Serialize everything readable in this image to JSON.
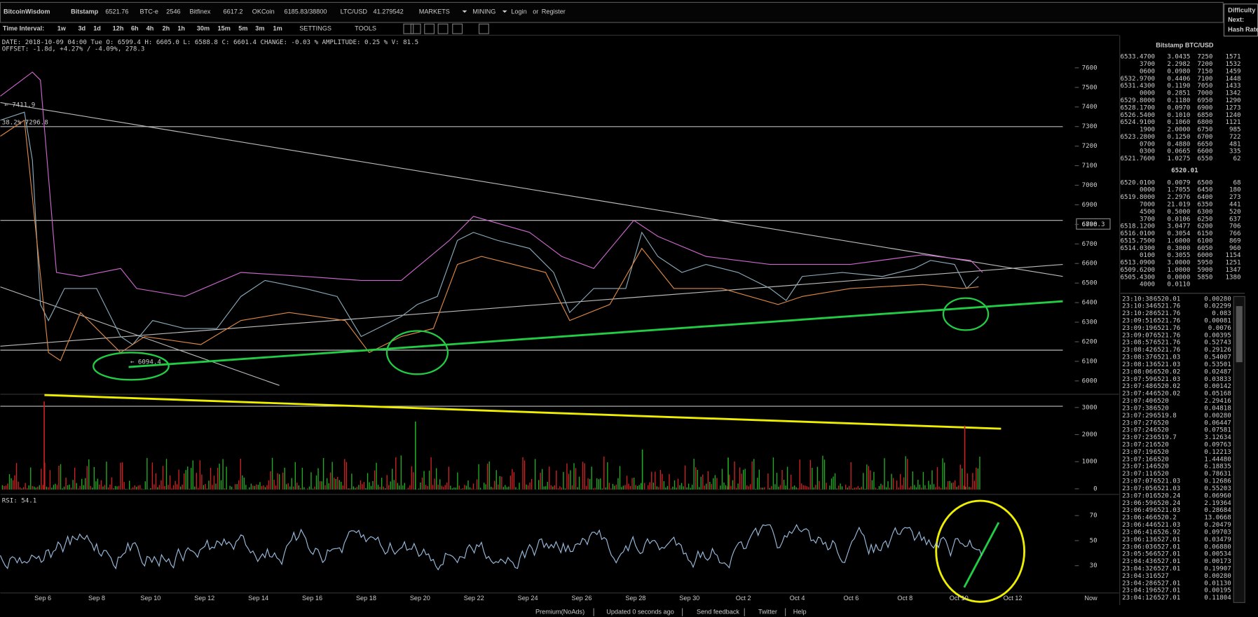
{
  "header": {
    "brand": "BitcoinWisdom",
    "tickers": [
      {
        "name": "Bitstamp",
        "price": "6521.76"
      },
      {
        "name": "BTC-e",
        "price": "2546"
      },
      {
        "name": "Bitfinex",
        "price": "6617.2"
      },
      {
        "name": "OKCoin",
        "price": "6185.83/38800"
      },
      {
        "name": "LTC/USD",
        "price": "41.279542"
      }
    ],
    "menus": [
      "MARKETS",
      "MINING"
    ],
    "login": "Login",
    "or": "or",
    "register": "Register",
    "side": [
      "Difficulty",
      "Next:",
      "Hash Rate"
    ]
  },
  "toolbar": {
    "label": "Time Interval:",
    "intervals": [
      "1w",
      "3d",
      "1d",
      "12h",
      "6h",
      "4h",
      "2h",
      "1h",
      "30m",
      "15m",
      "5m",
      "3m",
      "1m"
    ],
    "menus": [
      "SETTINGS",
      "TOOLS"
    ]
  },
  "info": [
    "DATE: 2018-10-09 04:00 Tue   O: 6599.4   H: 6605.0   L: 6588.8   C: 6601.4   CHANGE: -0.03 %   AMPLITUDE: 0.25 %   V: 81.5",
    "OFFSET: -1.8d, +4.27% / -4.09%, 278.3"
  ],
  "chart": {
    "price_ylim": [
      5940,
      7660
    ],
    "price_ticks": [
      6000,
      6100,
      6200,
      6300,
      6400,
      6500,
      6600,
      6700,
      6800,
      6900,
      7000,
      7100,
      7200,
      7300,
      7400,
      7500,
      7600
    ],
    "volume_ylim": [
      0,
      3400
    ],
    "volume_ticks": [
      0,
      1000,
      2000,
      3000
    ],
    "rsi_ylim": [
      5,
      85
    ],
    "rsi_ticks": [
      30,
      50,
      70
    ],
    "rsi_label": "RSI: 54.1",
    "dates": [
      "Sep 6",
      "Sep 8",
      "Sep 10",
      "Sep 12",
      "Sep 14",
      "Sep 16",
      "Sep 18",
      "Sep 20",
      "Sep 22",
      "Sep 24",
      "Sep 26",
      "Sep 28",
      "Sep 30",
      "Oct 2",
      "Oct 4",
      "Oct 6",
      "Oct 8",
      "Oct 10",
      "Oct 12"
    ],
    "now": "Now",
    "price_tag": "6798.3",
    "annotations": [
      "← 7411.9",
      "38.2% 7296.8",
      "← 6094.4"
    ]
  },
  "orderbook": {
    "title": "Bitstamp BTC/USD",
    "asks": [
      [
        "6533.4700",
        "3.0435",
        "7250",
        "1571"
      ],
      [
        "3700",
        "2.2982",
        "7200",
        "1532"
      ],
      [
        "0600",
        "0.0980",
        "7150",
        "1459"
      ],
      [
        "6532.9700",
        "0.4406",
        "7100",
        "1448"
      ],
      [
        "6531.4300",
        "0.1190",
        "7050",
        "1433"
      ],
      [
        "0000",
        "0.2851",
        "7000",
        "1342"
      ],
      [
        "6529.8000",
        "0.1180",
        "6950",
        "1290"
      ],
      [
        "6528.1700",
        "0.0970",
        "6900",
        "1273"
      ],
      [
        "6526.5400",
        "0.1010",
        "6850",
        "1240"
      ],
      [
        "6524.9100",
        "0.1060",
        "6800",
        "1121"
      ],
      [
        "1900",
        "2.0000",
        "6750",
        "985"
      ],
      [
        "6523.2800",
        "0.1250",
        "6700",
        "722"
      ],
      [
        "0700",
        "0.4880",
        "6650",
        "481"
      ],
      [
        "0300",
        "0.0665",
        "6600",
        "335"
      ],
      [
        "6521.7600",
        "1.0275",
        "6550",
        "62"
      ]
    ],
    "last": "6520.01",
    "bids": [
      [
        "6520.0100",
        "0.0079",
        "6500",
        "68"
      ],
      [
        "0000",
        "1.7055",
        "6450",
        "180"
      ],
      [
        "6519.8000",
        "2.2976",
        "6400",
        "273"
      ],
      [
        "7000",
        "21.019",
        "6350",
        "441"
      ],
      [
        "4500",
        "0.5000",
        "6300",
        "520"
      ],
      [
        "3700",
        "0.0106",
        "6250",
        "637"
      ],
      [
        "6518.1200",
        "3.0477",
        "6200",
        "706"
      ],
      [
        "6516.0100",
        "0.3054",
        "6150",
        "766"
      ],
      [
        "6515.7500",
        "1.6000",
        "6100",
        "869"
      ],
      [
        "6514.0300",
        "0.3000",
        "6050",
        "960"
      ],
      [
        "0100",
        "0.3055",
        "6000",
        "1154"
      ],
      [
        "6513.0900",
        "3.0000",
        "5950",
        "1251"
      ],
      [
        "6509.6200",
        "1.0000",
        "5900",
        "1347"
      ],
      [
        "6505.4300",
        "0.0000",
        "5850",
        "1380"
      ],
      [
        "4000",
        "0.0110"
      ]
    ]
  },
  "trades": [
    {
      "time": "23:10:38",
      "price": "6520.01",
      "amount": "0.00280",
      "color": "#f44"
    },
    {
      "time": "23:10:34",
      "price": "6521.76",
      "amount": "0.02299",
      "color": "#4d4"
    },
    {
      "time": "23:10:28",
      "price": "6521.76",
      "amount": "0.083",
      "color": "#4d4"
    },
    {
      "time": "23:09:51",
      "price": "6521.76",
      "amount": "0.00081",
      "color": "#4d4"
    },
    {
      "time": "23:09:19",
      "price": "6521.76",
      "amount": "0.0076",
      "color": "#4d4"
    },
    {
      "time": "23:09:07",
      "price": "6521.76",
      "amount": "0.00395",
      "color": "#4d4"
    },
    {
      "time": "23:08:57",
      "price": "6521.76",
      "amount": "0.52743",
      "color": "#4d4"
    },
    {
      "time": "23:08:42",
      "price": "6521.76",
      "amount": "0.29126",
      "color": "#4d4"
    },
    {
      "time": "23:08:37",
      "price": "6521.03",
      "amount": "0.54007",
      "color": "#4d4"
    },
    {
      "time": "23:08:13",
      "price": "6521.03",
      "amount": "0.53501",
      "color": "#4d4"
    },
    {
      "time": "23:08:06",
      "price": "6520.02",
      "amount": "0.02487",
      "color": "#4d4"
    },
    {
      "time": "23:07:59",
      "price": "6521.03",
      "amount": "0.03833",
      "color": "#4d4"
    },
    {
      "time": "23:07:48",
      "price": "6520.02",
      "amount": "0.00142",
      "color": "#4d4"
    },
    {
      "time": "23:07:44",
      "price": "6520.02",
      "amount": "0.05168",
      "color": "#4d4"
    },
    {
      "time": "23:07:40",
      "price": "6520",
      "amount": "2.29416",
      "color": "#4d4"
    },
    {
      "time": "23:07:38",
      "price": "6520",
      "amount": "0.04818",
      "color": "#4d4"
    },
    {
      "time": "23:07:29",
      "price": "6519.8",
      "amount": "0.00280",
      "color": "#f44"
    },
    {
      "time": "23:07:27",
      "price": "6520",
      "amount": "0.06447",
      "color": "#4d4"
    },
    {
      "time": "23:07:24",
      "price": "6520",
      "amount": "0.07581",
      "color": "#4d4"
    },
    {
      "time": "23:07:23",
      "price": "6519.7",
      "amount": "3.12634",
      "color": "#f44"
    },
    {
      "time": "23:07:21",
      "price": "6520",
      "amount": "0.09763",
      "color": "#f44"
    },
    {
      "time": "23:07:19",
      "price": "6520",
      "amount": "0.12213",
      "color": "#f44"
    },
    {
      "time": "23:07:16",
      "price": "6520",
      "amount": "1.44480",
      "color": "#f44"
    },
    {
      "time": "23:07:14",
      "price": "6520",
      "amount": "6.18835",
      "color": "#f44"
    },
    {
      "time": "23:07:11",
      "price": "6520",
      "amount": "0.78631",
      "color": "#f44"
    },
    {
      "time": "23:07:07",
      "price": "6521.03",
      "amount": "0.12686",
      "color": "#f44"
    },
    {
      "time": "23:07:05",
      "price": "6521.03",
      "amount": "0.55203",
      "color": "#f44"
    },
    {
      "time": "23:07:01",
      "price": "6520.24",
      "amount": "0.06960",
      "color": "#f44"
    },
    {
      "time": "23:06:59",
      "price": "6520.24",
      "amount": "2.19364",
      "color": "#f44"
    },
    {
      "time": "23:06:49",
      "price": "6521.03",
      "amount": "0.28684",
      "color": "#f44"
    },
    {
      "time": "23:06:46",
      "price": "6520.2",
      "amount": "13.0668",
      "color": "#f44"
    },
    {
      "time": "23:06:44",
      "price": "6521.03",
      "amount": "0.20479",
      "color": "#f44"
    },
    {
      "time": "23:06:41",
      "price": "6526.92",
      "amount": "0.09703",
      "color": "#f44"
    },
    {
      "time": "23:06:13",
      "price": "6527.01",
      "amount": "0.03479",
      "color": "#4d4"
    },
    {
      "time": "23:06:03",
      "price": "6527.01",
      "amount": "0.06880",
      "color": "#4d4"
    },
    {
      "time": "23:05:56",
      "price": "6527.01",
      "amount": "0.00534",
      "color": "#4d4"
    },
    {
      "time": "23:04:43",
      "price": "6527.01",
      "amount": "0.00173",
      "color": "#4d4"
    },
    {
      "time": "23:04:32",
      "price": "6527.01",
      "amount": "0.19907",
      "color": "#4d4"
    },
    {
      "time": "23:04:31",
      "price": "6527",
      "amount": "0.00280",
      "color": "#f44"
    },
    {
      "time": "23:04:28",
      "price": "6527.01",
      "amount": "0.01130",
      "color": "#4d4"
    },
    {
      "time": "23:04:19",
      "price": "6527.01",
      "amount": "0.00195",
      "color": "#4d4"
    },
    {
      "time": "23:04:12",
      "price": "6527.01",
      "amount": "0.11804",
      "color": "#4d4"
    }
  ],
  "footer": {
    "links": [
      "Premium(NoAds)",
      "Updated 0 seconds ago",
      "Send feedback",
      "Twitter",
      "Help"
    ]
  }
}
